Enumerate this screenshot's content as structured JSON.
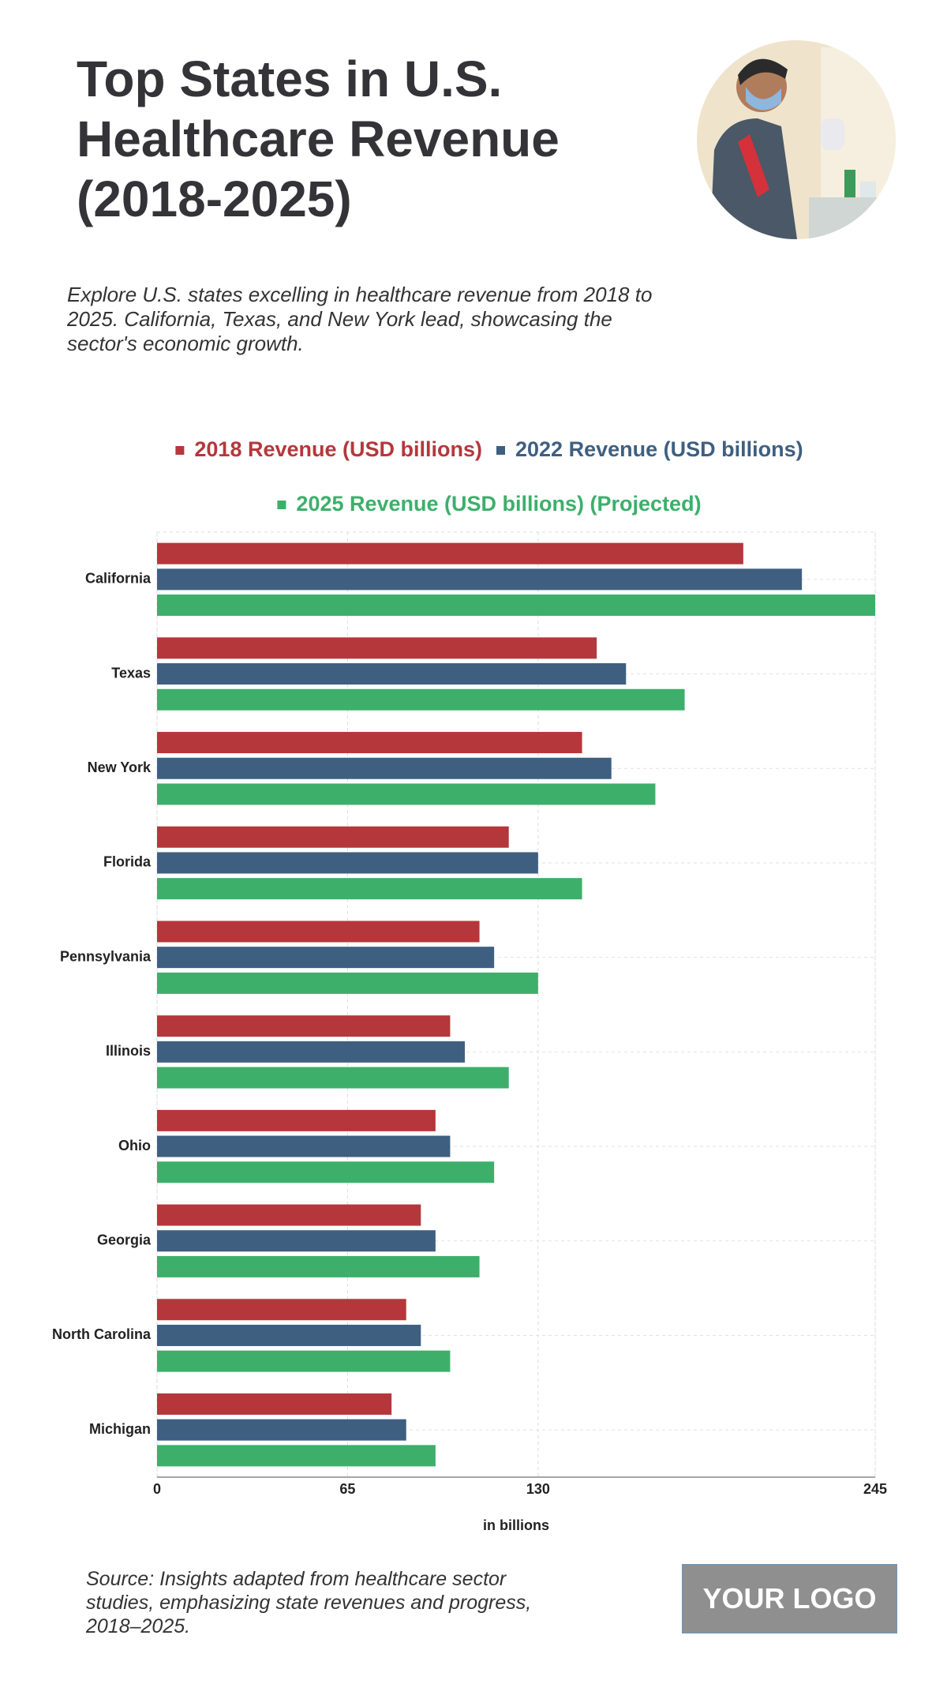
{
  "header": {
    "title": "Top States in U.S. Healthcare Revenue (2018-2025)",
    "subtitle": "Explore U.S. states excelling in healthcare revenue from 2018 to 2025. California, Texas, and New York lead, showcasing the sector's economic growth."
  },
  "chart_data": {
    "type": "bar",
    "orientation": "horizontal",
    "categories": [
      "California",
      "Texas",
      "New York",
      "Florida",
      "Pennsylvania",
      "Illinois",
      "Ohio",
      "Georgia",
      "North Carolina",
      "Michigan"
    ],
    "series": [
      {
        "name": "2018 Revenue (USD billions)",
        "color": "#b5373b",
        "values": [
          200,
          150,
          145,
          120,
          110,
          100,
          95,
          90,
          85,
          80
        ]
      },
      {
        "name": "2022 Revenue (USD billions)",
        "color": "#3e5f80",
        "values": [
          220,
          160,
          155,
          130,
          115,
          105,
          100,
          95,
          90,
          85
        ]
      },
      {
        "name": "2025 Revenue (USD billions) (Projected)",
        "color": "#3daf6b",
        "values": [
          245,
          180,
          170,
          145,
          130,
          120,
          115,
          110,
          100,
          95
        ]
      }
    ],
    "xlim": [
      0,
      245
    ],
    "xticks": [
      0,
      65,
      130,
      245
    ],
    "xlabel": "in billions",
    "grid": true,
    "legend": "top"
  },
  "footer": {
    "source": "Source: Insights adapted from healthcare sector studies, emphasizing state revenues and progress, 2018–2025.",
    "logo": "YOUR LOGO"
  }
}
